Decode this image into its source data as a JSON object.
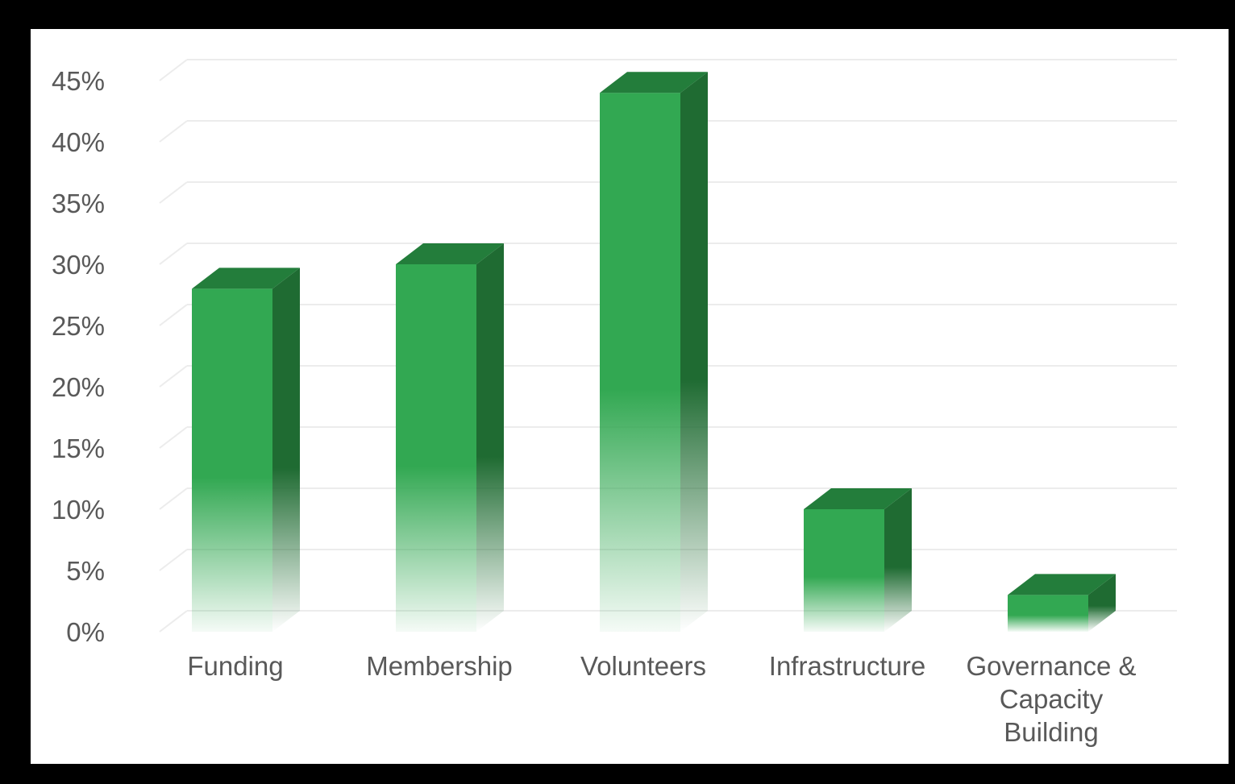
{
  "chart_data": {
    "type": "bar",
    "style": "3d-column",
    "categories": [
      "Funding",
      "Membership",
      "Volunteers",
      "Infrastructure",
      "Governance & Capacity Building"
    ],
    "category_label_lines": [
      [
        "Funding"
      ],
      [
        "Membership"
      ],
      [
        "Volunteers"
      ],
      [
        "Infrastructure"
      ],
      [
        "Governance &",
        "Capacity",
        "Building"
      ]
    ],
    "values": [
      28,
      30,
      44,
      10,
      3
    ],
    "ylim": [
      0,
      45
    ],
    "yticks": [
      0,
      5,
      10,
      15,
      20,
      25,
      30,
      35,
      40,
      45
    ],
    "ytick_labels": [
      "0%",
      "5%",
      "10%",
      "15%",
      "20%",
      "25%",
      "30%",
      "35%",
      "40%",
      "45%"
    ],
    "grid": true,
    "legend": "none",
    "colors": {
      "bar_front": "#32a852",
      "bar_side": "#1f6b32",
      "bar_top": "#237d3b",
      "gridline": "#ececec",
      "text": "#595959",
      "frame": "#000000"
    }
  }
}
